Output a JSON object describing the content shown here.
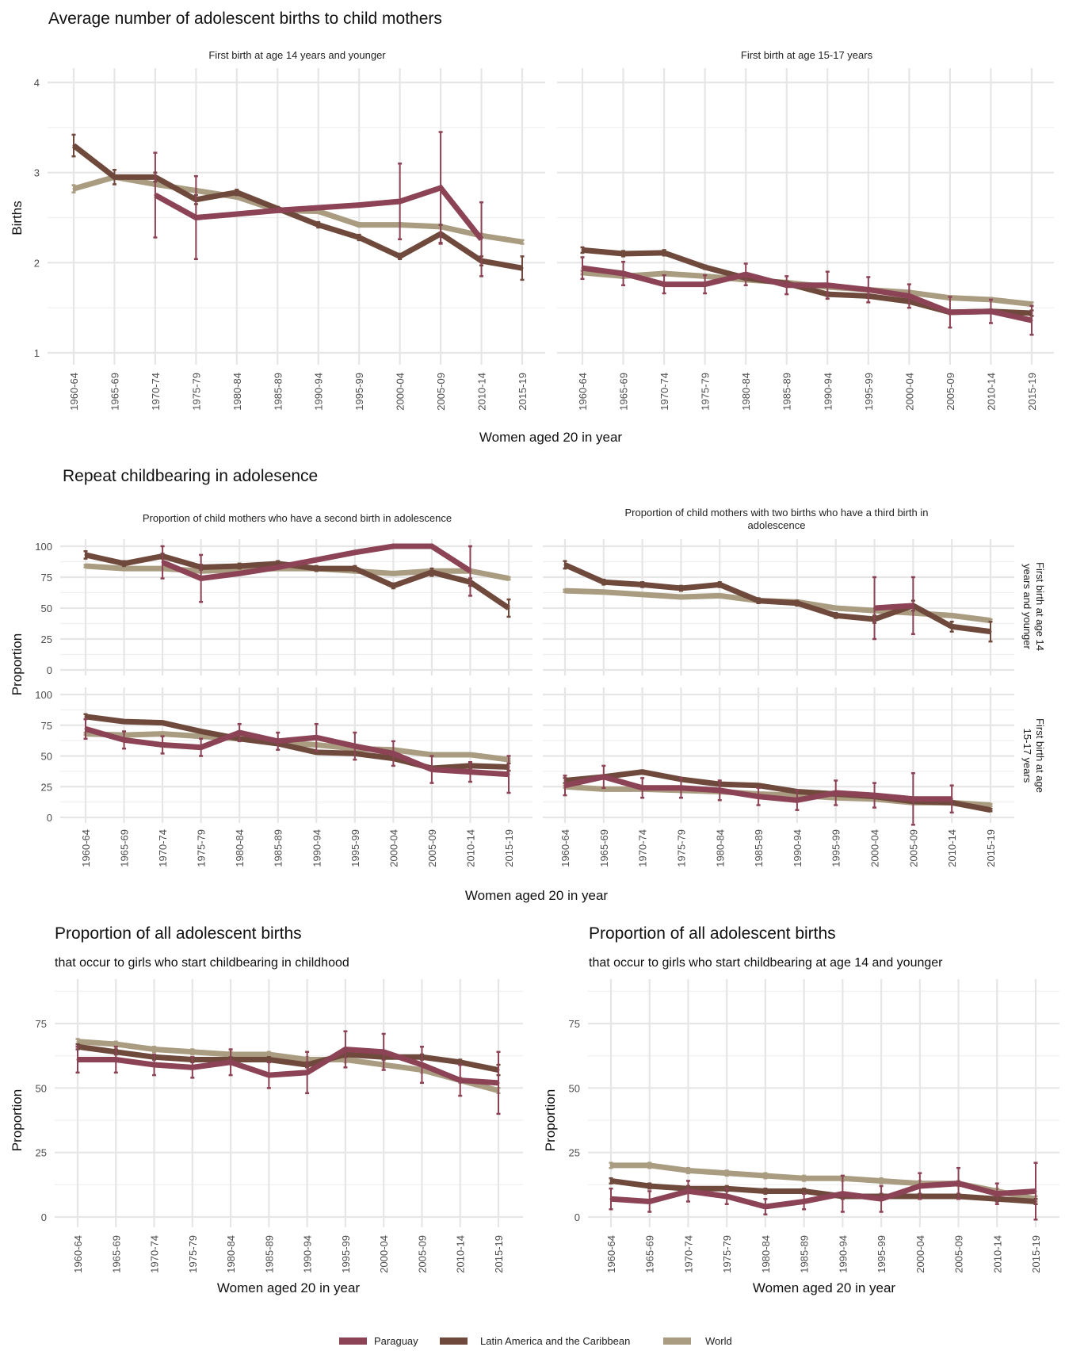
{
  "colors": {
    "Paraguay": "#8B4355",
    "Latin America and the Caribbean": "#6F4A3C",
    "World": "#A99C80",
    "grid": "#E6E6E6"
  },
  "legend": {
    "items": [
      {
        "label": "Paraguay",
        "key": "Paraguay"
      },
      {
        "label": "Latin America and the Caribbean",
        "key": "Latin America and the Caribbean"
      },
      {
        "label": "World",
        "key": "World"
      }
    ]
  },
  "sections": {
    "births": {
      "title": "Average number of adolescent births to child mothers",
      "xlabel": "Women aged 20 in year",
      "ylabel": "Births"
    },
    "repeat": {
      "title": "Repeat childbearing in adolesence",
      "xlabel": "Women aged 20 in year",
      "ylabel": "Proportion",
      "row_strips": [
        "First birth at age 14 years and younger",
        "First birth at age 15-17 years"
      ]
    },
    "share_childhood": {
      "title": "Proportion of all adolescent births",
      "subtitle": "that occur to girls who start childbearing in childhood",
      "xlabel": "Women aged 20 in year",
      "ylabel": "Proportion"
    },
    "share_14": {
      "title": "Proportion of all adolescent births",
      "subtitle": "that occur to girls who start childbearing at age 14 and younger",
      "xlabel": "Women aged 20 in year",
      "ylabel": "Proportion"
    }
  },
  "chart_data": [
    {
      "id": "births_14",
      "type": "line",
      "title": "First birth at age 14 years and younger",
      "xlabel": "Women aged 20 in year",
      "ylabel": "Births",
      "ylim": [
        1,
        4
      ],
      "yticks": [
        1,
        2,
        3,
        4
      ],
      "grid": true,
      "categories": [
        "1960-64",
        "1965-69",
        "1970-74",
        "1975-79",
        "1980-84",
        "1985-89",
        "1990-94",
        "1995-99",
        "2000-04",
        "2005-09",
        "2010-14",
        "2015-19"
      ],
      "series": [
        {
          "name": "World",
          "values": [
            2.82,
            2.95,
            2.87,
            2.8,
            2.73,
            2.58,
            2.57,
            2.42,
            2.42,
            2.4,
            2.3,
            2.23
          ],
          "errors": [
            0.04,
            0.02,
            0.02,
            0.02,
            0.02,
            0.02,
            0.02,
            0.02,
            0.02,
            0.02,
            0.02,
            0.02
          ]
        },
        {
          "name": "Latin America and the Caribbean",
          "values": [
            3.3,
            2.95,
            2.95,
            2.7,
            2.78,
            2.6,
            2.42,
            2.28,
            2.07,
            2.32,
            2.02,
            1.94
          ],
          "errors": [
            0.12,
            0.08,
            0.05,
            0.05,
            0.03,
            0.02,
            0.03,
            0.03,
            0.03,
            0.1,
            0.05,
            0.13
          ]
        },
        {
          "name": "Paraguay",
          "values": [
            null,
            null,
            2.75,
            2.5,
            null,
            null,
            null,
            null,
            2.68,
            2.83,
            2.26,
            null
          ],
          "errors": [
            null,
            null,
            0.47,
            0.46,
            null,
            null,
            null,
            null,
            0.42,
            0.62,
            0.41,
            null
          ],
          "line_values": [
            null,
            null,
            2.75,
            2.5,
            2.54,
            2.58,
            2.61,
            2.64,
            2.68,
            2.83,
            2.26,
            null
          ]
        }
      ]
    },
    {
      "id": "births_15_17",
      "type": "line",
      "title": "First birth at age 15-17 years",
      "xlabel": "Women aged 20 in year",
      "ylabel": "Births",
      "ylim": [
        1,
        4
      ],
      "yticks": [
        1,
        2,
        3,
        4
      ],
      "grid": true,
      "categories": [
        "1960-64",
        "1965-69",
        "1970-74",
        "1975-79",
        "1980-84",
        "1985-89",
        "1990-94",
        "1995-99",
        "2000-04",
        "2005-09",
        "2010-14",
        "2015-19"
      ],
      "series": [
        {
          "name": "World",
          "values": [
            1.89,
            1.85,
            1.88,
            1.85,
            1.81,
            1.78,
            1.73,
            1.7,
            1.67,
            1.61,
            1.59,
            1.54
          ],
          "errors": [
            0.02,
            0.02,
            0.02,
            0.02,
            0.02,
            0.02,
            0.02,
            0.02,
            0.02,
            0.02,
            0.02,
            0.02
          ]
        },
        {
          "name": "Latin America and the Caribbean",
          "values": [
            2.14,
            2.1,
            2.11,
            1.95,
            1.83,
            1.77,
            1.65,
            1.63,
            1.57,
            1.45,
            1.46,
            1.44
          ],
          "errors": [
            0.03,
            0.03,
            0.03,
            0.02,
            0.02,
            0.02,
            0.02,
            0.02,
            0.02,
            0.02,
            0.02,
            0.03
          ]
        },
        {
          "name": "Paraguay",
          "values": [
            1.94,
            1.88,
            1.76,
            1.76,
            1.87,
            1.75,
            1.75,
            1.7,
            1.63,
            1.45,
            1.46,
            1.36
          ],
          "errors": [
            0.12,
            0.13,
            0.1,
            0.1,
            0.12,
            0.1,
            0.15,
            0.14,
            0.13,
            0.17,
            0.13,
            0.16
          ]
        }
      ]
    },
    {
      "id": "second_birth_14",
      "type": "line",
      "title": "Proportion of child mothers who have a second birth in adolescence",
      "facet_row": "First birth at age 14 years and younger",
      "ylabel": "Proportion",
      "ylim": [
        0,
        100
      ],
      "yticks": [
        0,
        25,
        50,
        75,
        100
      ],
      "grid": true,
      "categories": [
        "1960-64",
        "1965-69",
        "1970-74",
        "1975-79",
        "1980-84",
        "1985-89",
        "1990-94",
        "1995-99",
        "2000-04",
        "2005-09",
        "2010-14",
        "2015-19"
      ],
      "series": [
        {
          "name": "World",
          "values": [
            84,
            82,
            82,
            80,
            81,
            82,
            82,
            80,
            78,
            80,
            80,
            74
          ],
          "errors": [
            1,
            1,
            1,
            1,
            1,
            1,
            1,
            1,
            1,
            1,
            1,
            1
          ]
        },
        {
          "name": "Latin America and the Caribbean",
          "values": [
            93,
            86,
            92,
            83,
            84,
            86,
            82,
            82,
            68,
            79,
            71,
            50
          ],
          "errors": [
            3,
            2,
            2,
            2,
            2,
            2,
            2,
            2,
            2,
            3,
            3,
            7
          ]
        },
        {
          "name": "Paraguay",
          "values": [
            null,
            null,
            87,
            74,
            null,
            null,
            null,
            null,
            100,
            100,
            80,
            null
          ],
          "errors": [
            null,
            null,
            13,
            19,
            null,
            null,
            null,
            null,
            null,
            null,
            20,
            null
          ],
          "line_values": [
            null,
            null,
            87,
            74,
            78,
            83,
            89,
            95,
            100,
            100,
            80,
            null
          ]
        }
      ]
    },
    {
      "id": "third_birth_14",
      "type": "line",
      "title": "Proportion of child mothers with two births who have a third birth in adolescence",
      "facet_row": "First birth at age 14 years and younger",
      "ylabel": "Proportion",
      "ylim": [
        0,
        100
      ],
      "yticks": [
        0,
        25,
        50,
        75,
        100
      ],
      "grid": true,
      "categories": [
        "1960-64",
        "1965-69",
        "1970-74",
        "1975-79",
        "1980-84",
        "1985-89",
        "1990-94",
        "1995-99",
        "2000-04",
        "2005-09",
        "2010-14",
        "2015-19"
      ],
      "series": [
        {
          "name": "World",
          "values": [
            64,
            63,
            61,
            59,
            60,
            56,
            55,
            50,
            48,
            46,
            44,
            40
          ],
          "errors": [
            1,
            1,
            1,
            1,
            1,
            1,
            1,
            1,
            1,
            1,
            1,
            1
          ]
        },
        {
          "name": "Latin America and the Caribbean",
          "values": [
            85,
            71,
            69,
            66,
            69,
            56,
            54,
            44,
            41,
            52,
            35,
            31
          ],
          "errors": [
            3,
            2,
            2,
            2,
            2,
            2,
            2,
            2,
            3,
            4,
            4,
            8
          ]
        },
        {
          "name": "Paraguay",
          "values": [
            null,
            null,
            null,
            null,
            null,
            null,
            null,
            null,
            50,
            52,
            null,
            null
          ],
          "errors": [
            null,
            null,
            null,
            null,
            null,
            null,
            null,
            null,
            25,
            23,
            null,
            null
          ]
        }
      ]
    },
    {
      "id": "second_birth_15_17",
      "type": "line",
      "title": "Proportion of child mothers who have a second birth in adolescence",
      "facet_row": "First birth at age 15-17 years",
      "ylabel": "Proportion",
      "ylim": [
        0,
        100
      ],
      "yticks": [
        0,
        25,
        50,
        75,
        100
      ],
      "grid": true,
      "categories": [
        "1960-64",
        "1965-69",
        "1970-74",
        "1975-79",
        "1980-84",
        "1985-89",
        "1990-94",
        "1995-99",
        "2000-04",
        "2005-09",
        "2010-14",
        "2015-19"
      ],
      "series": [
        {
          "name": "World",
          "values": [
            68,
            67,
            68,
            66,
            64,
            61,
            59,
            56,
            55,
            51,
            51,
            47
          ],
          "errors": [
            1,
            1,
            1,
            1,
            1,
            1,
            1,
            1,
            1,
            1,
            1,
            1
          ]
        },
        {
          "name": "Latin America and the Caribbean",
          "values": [
            82,
            78,
            77,
            70,
            64,
            60,
            53,
            52,
            48,
            40,
            42,
            41
          ],
          "errors": [
            2,
            1,
            1,
            1,
            1,
            1,
            1,
            1,
            1,
            1,
            2,
            3
          ]
        },
        {
          "name": "Paraguay",
          "values": [
            72,
            63,
            59,
            57,
            69,
            62,
            65,
            58,
            52,
            39,
            37,
            35
          ],
          "errors": [
            8,
            7,
            7,
            7,
            7,
            7,
            11,
            11,
            10,
            11,
            8,
            15
          ]
        }
      ]
    },
    {
      "id": "third_birth_15_17",
      "type": "line",
      "title": "Proportion of child mothers with two births who have a third birth in adolescence",
      "facet_row": "First birth at age 15-17 years",
      "ylabel": "Proportion",
      "ylim": [
        0,
        100
      ],
      "yticks": [
        0,
        25,
        50,
        75,
        100
      ],
      "grid": true,
      "categories": [
        "1960-64",
        "1965-69",
        "1970-74",
        "1975-79",
        "1980-84",
        "1985-89",
        "1990-94",
        "1995-99",
        "2000-04",
        "2005-09",
        "2010-14",
        "2015-19"
      ],
      "series": [
        {
          "name": "World",
          "values": [
            25,
            23,
            23,
            22,
            21,
            19,
            18,
            16,
            15,
            12,
            12,
            10
          ],
          "errors": [
            1,
            1,
            1,
            1,
            1,
            1,
            1,
            1,
            1,
            1,
            1,
            1
          ]
        },
        {
          "name": "Latin America and the Caribbean",
          "values": [
            30,
            33,
            37,
            31,
            27,
            26,
            21,
            19,
            17,
            13,
            12,
            6
          ],
          "errors": [
            2,
            1,
            1,
            1,
            1,
            1,
            1,
            1,
            1,
            1,
            1,
            1
          ]
        },
        {
          "name": "Paraguay",
          "values": [
            26,
            33,
            24,
            24,
            22,
            17,
            14,
            20,
            18,
            15,
            15,
            null
          ],
          "errors": [
            8,
            9,
            8,
            8,
            8,
            7,
            8,
            10,
            10,
            21,
            11,
            null
          ]
        }
      ]
    },
    {
      "id": "share_childhood",
      "type": "line",
      "title": "Proportion of all adolescent births",
      "subtitle": "that occur to girls who start childbearing in childhood",
      "xlabel": "Women aged 20 in year",
      "ylabel": "Proportion",
      "ylim": [
        0,
        93
      ],
      "yticks": [
        0,
        25,
        50,
        75
      ],
      "grid": true,
      "categories": [
        "1960-64",
        "1965-69",
        "1970-74",
        "1975-79",
        "1980-84",
        "1985-89",
        "1990-94",
        "1995-99",
        "2000-04",
        "2005-09",
        "2010-14",
        "2015-19"
      ],
      "series": [
        {
          "name": "World",
          "values": [
            68,
            67,
            65,
            64,
            63,
            63,
            61,
            61,
            59,
            57,
            53,
            49
          ],
          "errors": [
            1,
            1,
            1,
            1,
            1,
            1,
            1,
            1,
            1,
            1,
            1,
            1
          ]
        },
        {
          "name": "Latin America and the Caribbean",
          "values": [
            66,
            64,
            62,
            61,
            61,
            61,
            59,
            63,
            62,
            62,
            60,
            57
          ],
          "errors": [
            1,
            1,
            1,
            1,
            1,
            1,
            1,
            1,
            1,
            1,
            1,
            2
          ]
        },
        {
          "name": "Paraguay",
          "values": [
            61,
            61,
            59,
            58,
            60,
            55,
            56,
            65,
            64,
            59,
            53,
            52
          ],
          "errors": [
            5,
            5,
            4,
            4,
            5,
            5,
            8,
            7,
            7,
            7,
            6,
            12
          ]
        }
      ]
    },
    {
      "id": "share_14",
      "type": "line",
      "title": "Proportion of all adolescent births",
      "subtitle": "that occur to girls who start childbearing at age 14 and younger",
      "xlabel": "Women aged 20 in year",
      "ylabel": "Proportion",
      "ylim": [
        0,
        93
      ],
      "yticks": [
        0,
        25,
        50,
        75
      ],
      "grid": true,
      "categories": [
        "1960-64",
        "1965-69",
        "1970-74",
        "1975-79",
        "1980-84",
        "1985-89",
        "1990-94",
        "1995-99",
        "2000-04",
        "2005-09",
        "2010-14",
        "2015-19"
      ],
      "series": [
        {
          "name": "World",
          "values": [
            20,
            20,
            18,
            17,
            16,
            15,
            15,
            14,
            13,
            13,
            10,
            7
          ],
          "errors": [
            1,
            1,
            1,
            1,
            1,
            1,
            1,
            1,
            1,
            1,
            1,
            1
          ]
        },
        {
          "name": "Latin America and the Caribbean",
          "values": [
            14,
            12,
            11,
            11,
            10,
            10,
            8,
            8,
            8,
            8,
            7,
            6
          ],
          "errors": [
            1,
            1,
            1,
            1,
            1,
            1,
            1,
            1,
            1,
            1,
            1,
            1
          ]
        },
        {
          "name": "Paraguay",
          "values": [
            7,
            6,
            10,
            8,
            4,
            6,
            9,
            7,
            12,
            13,
            9,
            10
          ],
          "errors": [
            4,
            4,
            4,
            3,
            3,
            3,
            7,
            5,
            5,
            6,
            4,
            11
          ]
        }
      ]
    }
  ]
}
